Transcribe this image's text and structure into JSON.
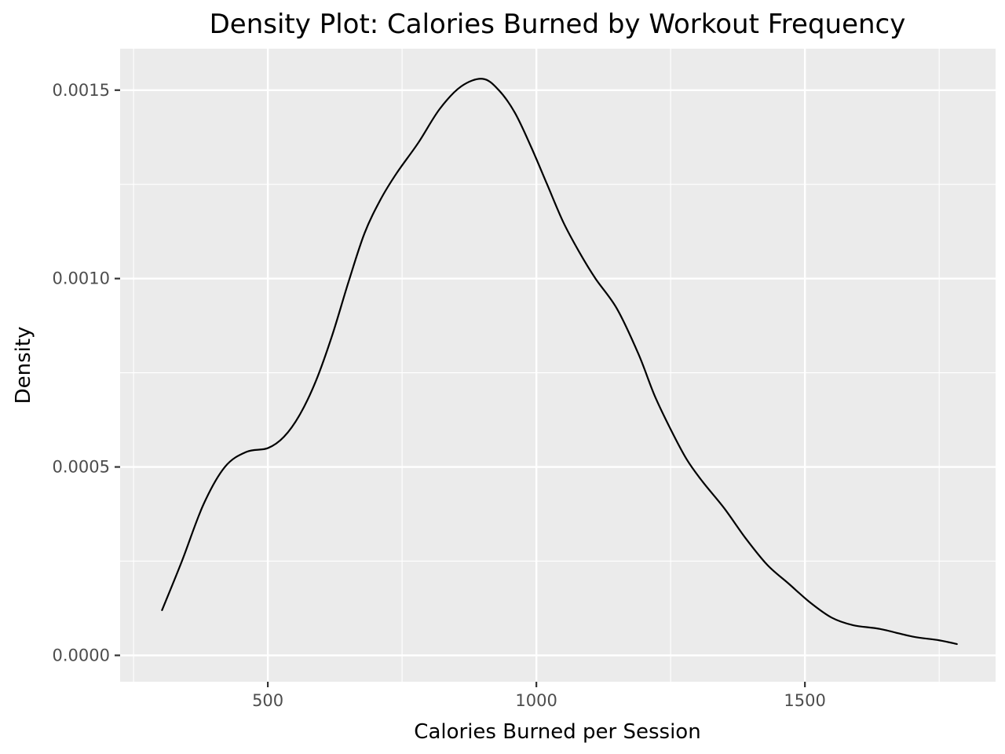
{
  "chart_data": {
    "type": "line",
    "title": "Density Plot: Calories Burned by Workout Frequency",
    "xlabel": "Calories Burned per Session",
    "ylabel": "Density",
    "xlim": [
      225,
      1855
    ],
    "ylim": [
      -7e-05,
      0.00161
    ],
    "x_ticks": [
      500,
      1000,
      1500
    ],
    "x_tick_labels": [
      "500",
      "1000",
      "1500"
    ],
    "x_minor_ticks": [
      250,
      750,
      1250,
      1750
    ],
    "y_ticks": [
      0.0,
      0.0005,
      0.001,
      0.0015
    ],
    "y_tick_labels": [
      "0.0000",
      "0.0005",
      "0.0010",
      "0.0015"
    ],
    "y_minor_ticks": [
      0.00025,
      0.00075,
      0.00125
    ],
    "grid": true,
    "panel_background": "#ebebeb",
    "line_color": "#000000",
    "series": [
      {
        "x": [
          303,
          340,
          380,
          420,
          460,
          500,
          530,
          560,
          590,
          620,
          650,
          680,
          710,
          740,
          780,
          820,
          860,
          900,
          930,
          960,
          990,
          1020,
          1050,
          1080,
          1110,
          1150,
          1190,
          1220,
          1250,
          1280,
          1310,
          1350,
          1390,
          1430,
          1470,
          1510,
          1550,
          1590,
          1640,
          1700,
          1750,
          1783
        ],
        "y": [
          0.00012,
          0.00025,
          0.0004,
          0.0005,
          0.00054,
          0.00055,
          0.00058,
          0.00064,
          0.00073,
          0.00085,
          0.00099,
          0.00112,
          0.00121,
          0.00128,
          0.00136,
          0.00145,
          0.00151,
          0.00153,
          0.0015,
          0.00144,
          0.00135,
          0.00125,
          0.00115,
          0.00107,
          0.001,
          0.00092,
          0.0008,
          0.00069,
          0.0006,
          0.00052,
          0.00046,
          0.00039,
          0.00031,
          0.00024,
          0.00019,
          0.00014,
          0.0001,
          8e-05,
          7e-05,
          5e-05,
          4e-05,
          3e-05
        ]
      }
    ]
  }
}
